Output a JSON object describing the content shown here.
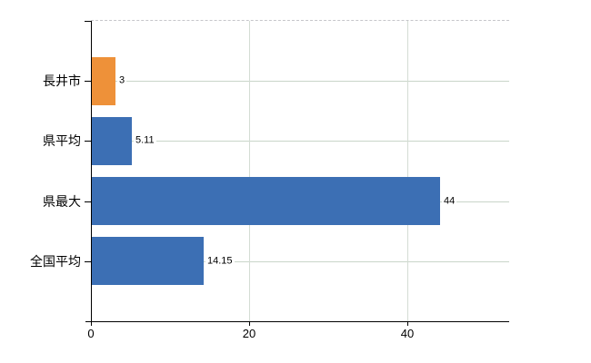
{
  "chart_data": {
    "type": "bar",
    "orientation": "horizontal",
    "title": "",
    "xlabel": "",
    "ylabel": "",
    "categories": [
      "長井市",
      "県平均",
      "県最大",
      "全国平均"
    ],
    "values": [
      3,
      5.11,
      44,
      14.15
    ],
    "value_labels": [
      "3",
      "5.11",
      "44",
      "14.15"
    ],
    "bar_colors": [
      "#ee9139",
      "#3c6fb4",
      "#3c6fb4",
      "#3c6fb4"
    ],
    "xlim": [
      0,
      52.9
    ],
    "x_ticks": [
      0,
      20,
      40
    ],
    "x_tick_labels": [
      "0",
      "20",
      "40"
    ],
    "grid": true,
    "legend": "none"
  },
  "colors": {
    "highlight_bar": "#ee9139",
    "default_bar": "#3c6fb4",
    "gridline_horizontal": "#c9d5c9",
    "gridline_vertical": "#d4dcd4",
    "plot_top_border": "#c6c6ca",
    "axis": "#000000",
    "text": "#000000",
    "background": "#ffffff"
  }
}
